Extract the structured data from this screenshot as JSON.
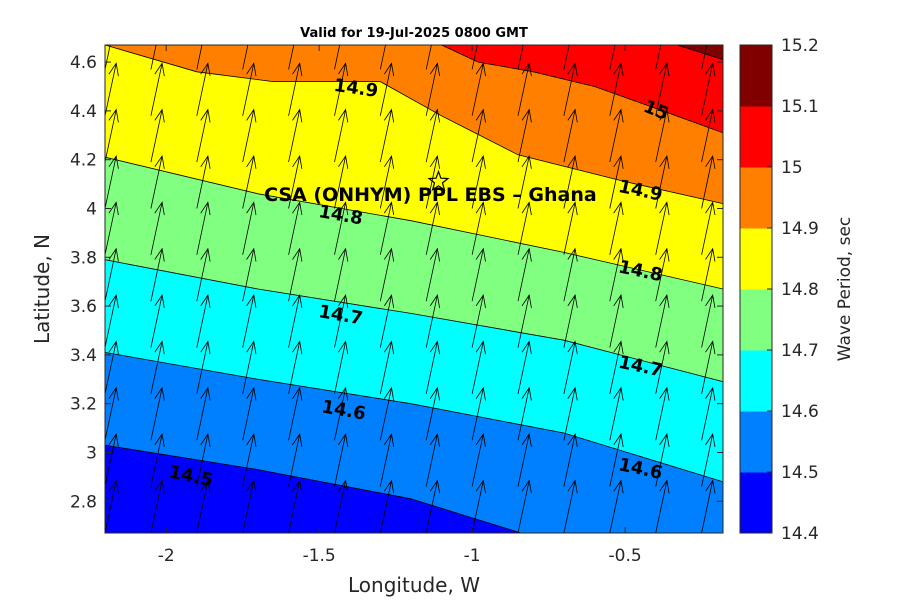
{
  "chart_data": {
    "type": "heatmap",
    "subtype": "filled-contour-with-vector-arrows",
    "title": "Valid for 19-Jul-2025 0800 GMT",
    "xlabel": "Longitude, W",
    "ylabel": "Latitude, N",
    "xlim": [
      -2.2,
      -0.18
    ],
    "ylim": [
      2.67,
      4.67
    ],
    "xticks": [
      -2,
      -1.5,
      -1,
      -0.5
    ],
    "xtick_labels": [
      "-2",
      "-1.5",
      "-1",
      "-0.5"
    ],
    "yticks": [
      2.8,
      3,
      3.2,
      3.4,
      3.6,
      3.8,
      4,
      4.2,
      4.4,
      4.6
    ],
    "ytick_labels": [
      "2.8",
      "3",
      "3.2",
      "3.4",
      "3.6",
      "3.8",
      "4",
      "4.2",
      "4.4",
      "4.6"
    ],
    "colorbar": {
      "label": "Wave Period, sec",
      "levels": [
        14.4,
        14.5,
        14.6,
        14.7,
        14.8,
        14.9,
        15,
        15.1,
        15.2
      ],
      "tick_labels": [
        "14.4",
        "14.5",
        "14.6",
        "14.7",
        "14.8",
        "14.9",
        "15",
        "15.1",
        "15.2"
      ],
      "colors": [
        "#0000ff",
        "#0080ff",
        "#00ffff",
        "#80ff80",
        "#ffff00",
        "#ff8000",
        "#ff0000",
        "#800000"
      ]
    },
    "contours": [
      {
        "level": 14.5,
        "points": [
          [
            -2.2,
            3.03
          ],
          [
            -1.7,
            2.93
          ],
          [
            -1.2,
            2.81
          ],
          [
            -0.84,
            2.67
          ]
        ]
      },
      {
        "level": 14.6,
        "points": [
          [
            -2.2,
            3.41
          ],
          [
            -1.7,
            3.3
          ],
          [
            -1.2,
            3.2
          ],
          [
            -0.7,
            3.08
          ],
          [
            -0.18,
            2.88
          ]
        ]
      },
      {
        "level": 14.7,
        "points": [
          [
            -2.2,
            3.79
          ],
          [
            -1.7,
            3.67
          ],
          [
            -1.2,
            3.57
          ],
          [
            -0.7,
            3.46
          ],
          [
            -0.18,
            3.29
          ]
        ]
      },
      {
        "level": 14.8,
        "points": [
          [
            -2.2,
            4.21
          ],
          [
            -1.7,
            4.06
          ],
          [
            -1.2,
            3.95
          ],
          [
            -0.7,
            3.82
          ],
          [
            -0.18,
            3.67
          ]
        ]
      },
      {
        "level": 14.9,
        "points": [
          [
            -2.2,
            4.67
          ],
          [
            -1.9,
            4.56
          ],
          [
            -1.65,
            4.52
          ],
          [
            -1.3,
            4.52
          ],
          [
            -1.1,
            4.38
          ],
          [
            -0.85,
            4.22
          ],
          [
            -0.5,
            4.11
          ],
          [
            -0.18,
            4.02
          ]
        ]
      },
      {
        "level": 15,
        "points": [
          [
            -1.1,
            4.67
          ],
          [
            -0.98,
            4.6
          ],
          [
            -0.8,
            4.56
          ],
          [
            -0.6,
            4.5
          ],
          [
            -0.4,
            4.41
          ],
          [
            -0.18,
            4.31
          ]
        ]
      },
      {
        "level": 15.1,
        "points": [
          [
            -0.33,
            4.67
          ],
          [
            -0.18,
            4.61
          ]
        ]
      }
    ],
    "contour_labels": [
      {
        "text": "14.5",
        "x": -1.92,
        "y": 2.9,
        "angle": 12
      },
      {
        "text": "14.6",
        "x": -1.42,
        "y": 3.17,
        "angle": 10
      },
      {
        "text": "14.6",
        "x": -0.45,
        "y": 2.93,
        "angle": 12
      },
      {
        "text": "14.7",
        "x": -1.43,
        "y": 3.56,
        "angle": 10
      },
      {
        "text": "14.7",
        "x": -0.45,
        "y": 3.35,
        "angle": 12
      },
      {
        "text": "14.8",
        "x": -1.43,
        "y": 3.97,
        "angle": 10
      },
      {
        "text": "14.8",
        "x": -0.45,
        "y": 3.74,
        "angle": 12
      },
      {
        "text": "14.9",
        "x": -1.38,
        "y": 4.49,
        "angle": 8
      },
      {
        "text": "14.9",
        "x": -0.45,
        "y": 4.07,
        "angle": 12
      },
      {
        "text": "15",
        "x": -0.4,
        "y": 4.4,
        "angle": 22
      }
    ],
    "annotation": {
      "text": "CSA (ONHYM) PPL EBS  – Ghana",
      "star_x": -1.11,
      "star_y": 4.11,
      "text_x": -1.68,
      "text_y": 4.03
    },
    "vector_field": {
      "x_start": -2.2,
      "dx": 0.15,
      "nx": 14,
      "y_start": 2.67,
      "dy": 0.19,
      "ny": 11,
      "direction_deg": 12,
      "length_deg": 0.22
    }
  }
}
